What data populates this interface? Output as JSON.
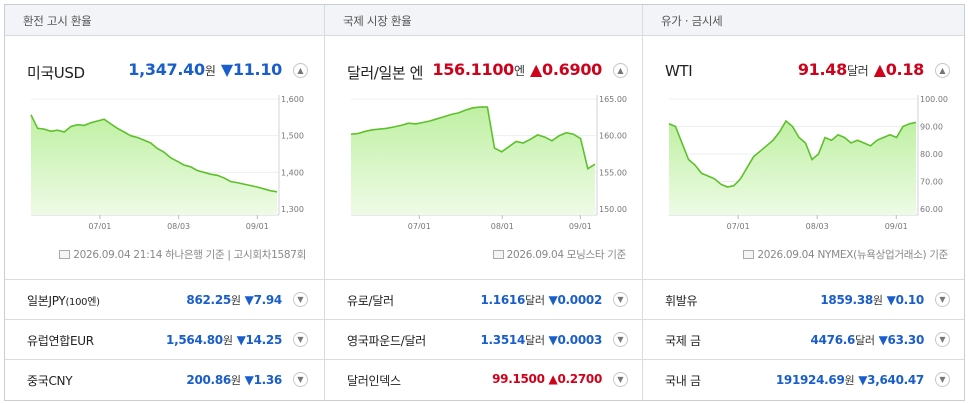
{
  "sections": [
    {
      "header": "환전 고시 환율",
      "main": {
        "title": "미국USD",
        "price": "1,347.40",
        "unit": "원",
        "arrow": "▼",
        "change": "11.10",
        "dir": "down"
      },
      "source": "2026.09.04 21:14 하나은행 기준 | 고시회차1587회",
      "rows": [
        {
          "name": "일본JPY",
          "name_suffix": "(100엔)",
          "price": "862.25",
          "unit": "원",
          "arrow": "▼",
          "change": "7.94",
          "dir": "down"
        },
        {
          "name": "유럽연합EUR",
          "name_suffix": "",
          "price": "1,564.80",
          "unit": "원",
          "arrow": "▼",
          "change": "14.25",
          "dir": "down"
        },
        {
          "name": "중국CNY",
          "name_suffix": "",
          "price": "200.86",
          "unit": "원",
          "arrow": "▼",
          "change": "1.36",
          "dir": "down"
        }
      ]
    },
    {
      "header": "국제 시장 환율",
      "main": {
        "title": "달러/일본 엔",
        "price": "156.1100",
        "unit": "엔",
        "arrow": "▲",
        "change": "0.6900",
        "dir": "up"
      },
      "source": "2026.09.04 모닝스타 기준",
      "rows": [
        {
          "name": "유로/달러",
          "name_suffix": "",
          "price": "1.1616",
          "unit": "달러",
          "arrow": "▼",
          "change": "0.0002",
          "dir": "down"
        },
        {
          "name": "영국파운드/달러",
          "name_suffix": "",
          "price": "1.3514",
          "unit": "달러",
          "arrow": "▼",
          "change": "0.0003",
          "dir": "down"
        },
        {
          "name": "달러인덱스",
          "name_suffix": "",
          "price": "99.1500",
          "unit": "",
          "arrow": "▲",
          "change": "0.2700",
          "dir": "up"
        }
      ]
    },
    {
      "header": "유가 · 금시세",
      "main": {
        "title": "WTI",
        "price": "91.48",
        "unit": "달러",
        "arrow": "▲",
        "change": "0.18",
        "dir": "up"
      },
      "source": "2026.09.04 NYMEX(뉴욕상업거래소) 기준",
      "rows": [
        {
          "name": "휘발유",
          "name_suffix": "",
          "price": "1859.38",
          "unit": "원",
          "arrow": "▼",
          "change": "0.10",
          "dir": "down"
        },
        {
          "name": "국제 금",
          "name_suffix": "",
          "price": "4476.6",
          "unit": "달러",
          "arrow": "▼",
          "change": "63.30",
          "dir": "down"
        },
        {
          "name": "국내 금",
          "name_suffix": "",
          "price": "191924.69",
          "unit": "원",
          "arrow": "▼",
          "change": "3,640.47",
          "dir": "down"
        }
      ]
    }
  ],
  "toggle_icon": "chevron-up-icon",
  "row_toggle_icon": "chevron-down-icon",
  "colors": {
    "up": "#d0021b",
    "down": "#1a5ecb",
    "line": "#5cc12a",
    "fill_top": "#bff0a3",
    "fill_bottom": "#eefbe6"
  },
  "chart_data": [
    {
      "type": "area",
      "x_ticks": [
        "07/01",
        "08/03",
        "09/01"
      ],
      "y_ticks": [
        "1,600",
        "1,500",
        "1,400",
        "1,300"
      ],
      "ylim": [
        1300,
        1600
      ],
      "series": [
        {
          "values": [
            1557,
            1520,
            1518,
            1512,
            1515,
            1510,
            1525,
            1530,
            1528,
            1535,
            1540,
            1545,
            1532,
            1520,
            1510,
            1500,
            1495,
            1488,
            1480,
            1465,
            1455,
            1440,
            1430,
            1420,
            1415,
            1405,
            1400,
            1395,
            1392,
            1385,
            1375,
            1372,
            1368,
            1364,
            1360,
            1355,
            1350,
            1347
          ]
        }
      ]
    },
    {
      "type": "area",
      "x_ticks": [
        "07/01",
        "08/01",
        "09/01"
      ],
      "y_ticks": [
        "165.00",
        "160.00",
        "155.00",
        "150.00"
      ],
      "ylim": [
        150,
        165
      ],
      "series": [
        {
          "values": [
            160.2,
            160.3,
            160.6,
            160.8,
            160.9,
            161.0,
            161.2,
            161.4,
            161.7,
            161.6,
            161.8,
            162.0,
            162.3,
            162.6,
            162.9,
            163.1,
            163.5,
            163.8,
            163.9,
            163.9,
            158.3,
            157.8,
            158.5,
            159.2,
            159.0,
            159.5,
            160.1,
            159.8,
            159.3,
            160.0,
            160.4,
            160.2,
            159.6,
            155.5,
            156.11
          ]
        }
      ]
    },
    {
      "type": "area",
      "x_ticks": [
        "07/01",
        "08/03",
        "09/01"
      ],
      "y_ticks": [
        "100.00",
        "90.00",
        "80.00",
        "70.00",
        "60.00"
      ],
      "ylim": [
        60,
        100
      ],
      "series": [
        {
          "values": [
            91,
            90,
            84,
            78,
            76,
            73,
            72,
            71,
            69,
            68,
            68.5,
            71,
            75,
            79,
            81,
            83,
            85,
            88,
            92,
            90,
            86,
            84,
            78,
            80,
            86,
            85,
            87,
            86,
            84,
            85,
            84,
            83,
            85,
            86,
            87,
            86,
            90,
            91,
            91.48
          ]
        }
      ]
    }
  ]
}
